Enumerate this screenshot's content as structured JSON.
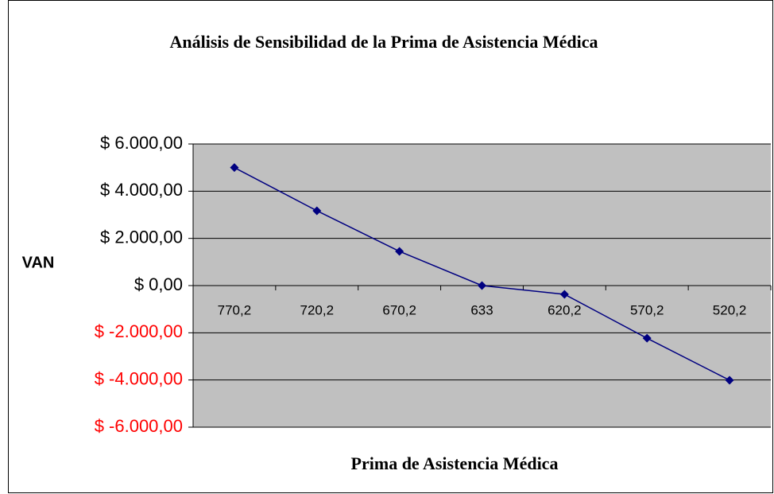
{
  "chart_data": {
    "type": "line",
    "title": "Análisis de Sensibilidad de la Prima de Asistencia Médica",
    "x_label": "Prima de Asistencia Médica",
    "y_label": "VAN",
    "categories": [
      "770,2",
      "720,2",
      "670,2",
      "633",
      "620,2",
      "570,2",
      "520,2"
    ],
    "series": [
      {
        "name": "VAN",
        "color": "#000080",
        "values": [
          5000,
          3170,
          1450,
          0,
          -370,
          -2230,
          -4010
        ]
      }
    ],
    "ylim": [
      -6000,
      6000
    ],
    "yticks": [
      {
        "value": 6000,
        "label": "$ 6.000,00"
      },
      {
        "value": 4000,
        "label": "$ 4.000,00"
      },
      {
        "value": 2000,
        "label": "$ 2.000,00"
      },
      {
        "value": 0,
        "label": "$ 0,00"
      },
      {
        "value": -2000,
        "label": "$ -2.000,00"
      },
      {
        "value": -4000,
        "label": "$ -4.000,00"
      },
      {
        "value": -6000,
        "label": "$ -6.000,00"
      }
    ],
    "grid": true
  }
}
